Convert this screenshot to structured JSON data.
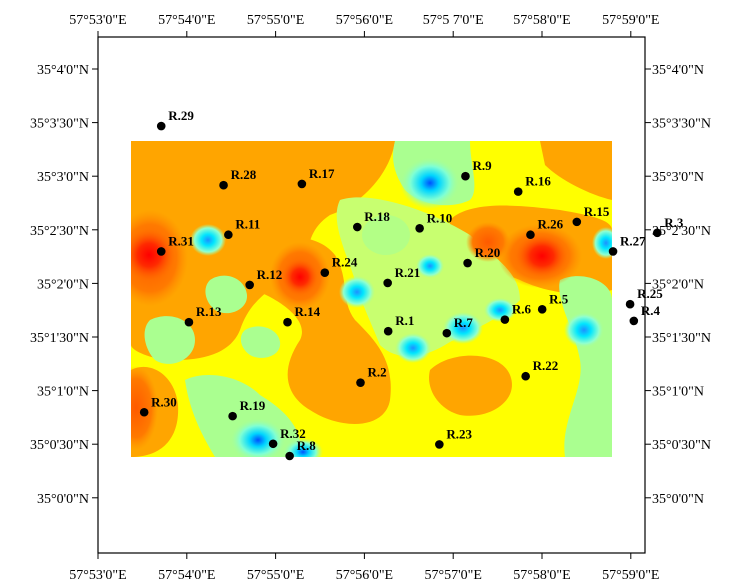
{
  "map": {
    "top_ticks": [
      "57°53'0\"E",
      "57°54'0\"E",
      "57°55'0\"E",
      "57°56'0\"E",
      "57°5 7'0\"E",
      "57°58'0\"E",
      "57°59'0\"E"
    ],
    "bottom_ticks": [
      "57°53'0\"E",
      "57°54'0\"E",
      "57°55'0\"E",
      "57°56'0\"E",
      "57°57'0\"E",
      "57°58'0\"E",
      "57°59'0\"E"
    ],
    "left_ticks": [
      "35°4'0\"N",
      "35°3'30\"N",
      "35°3'0\"N",
      "35°2'30\"N",
      "35°2'0\"N",
      "35°1'30\"N",
      "35°1'0\"N",
      "35°0'30\"N",
      "35°0'0\"N"
    ],
    "right_ticks": [
      "35°4'0\"N",
      "35°3'30\"N",
      "35°3'0\"N",
      "35°2'30\"N",
      "35°2'0\"N",
      "35°1'30\"N",
      "35°1'0\"N",
      "35°0'30\"N",
      "35°0'0\"N"
    ],
    "colors": {
      "high": "#ff0000",
      "mid_high": "#ff6a00",
      "mid": "#ffa500",
      "mid_low": "#ffff00",
      "low": "#aaff90",
      "lower": "#7fffd4",
      "lowest": "#00e5ff",
      "min": "#0070ff"
    },
    "points": [
      {
        "label": "R.1",
        "lon": 57.9378,
        "lat": 35.0259
      },
      {
        "label": "R.2",
        "lon": 57.9326,
        "lat": 35.0179
      },
      {
        "label": "R.3",
        "lon": 57.9883,
        "lat": 35.0412
      },
      {
        "label": "R.4",
        "lon": 57.9839,
        "lat": 35.0275
      },
      {
        "label": "R.5",
        "lon": 57.9667,
        "lat": 35.0293
      },
      {
        "label": "R.6",
        "lon": 57.9597,
        "lat": 35.0277
      },
      {
        "label": "R.7",
        "lon": 57.9488,
        "lat": 35.0256
      },
      {
        "label": "R.8",
        "lon": 57.9193,
        "lat": 35.0065
      },
      {
        "label": "R.9",
        "lon": 57.9523,
        "lat": 35.05
      },
      {
        "label": "R.10",
        "lon": 57.9437,
        "lat": 35.0419
      },
      {
        "label": "R.11",
        "lon": 57.9078,
        "lat": 35.0409
      },
      {
        "label": "R.12",
        "lon": 57.9118,
        "lat": 35.0331
      },
      {
        "label": "R.13",
        "lon": 57.9004,
        "lat": 35.0273
      },
      {
        "label": "R.14",
        "lon": 57.9189,
        "lat": 35.0273
      },
      {
        "label": "R.15",
        "lon": 57.9732,
        "lat": 35.0429
      },
      {
        "label": "R.16",
        "lon": 57.9622,
        "lat": 35.0476
      },
      {
        "label": "R.17",
        "lon": 57.9216,
        "lat": 35.0488
      },
      {
        "label": "R.18",
        "lon": 57.932,
        "lat": 35.0421
      },
      {
        "label": "R.19",
        "lon": 57.9086,
        "lat": 35.0127
      },
      {
        "label": "R.20",
        "lon": 57.9527,
        "lat": 35.0365
      },
      {
        "label": "R.21",
        "lon": 57.9377,
        "lat": 35.0334
      },
      {
        "label": "R.22",
        "lon": 57.9636,
        "lat": 35.0189
      },
      {
        "label": "R.23",
        "lon": 57.9474,
        "lat": 35.0083
      },
      {
        "label": "R.24",
        "lon": 57.9259,
        "lat": 35.035
      },
      {
        "label": "R.25",
        "lon": 57.9832,
        "lat": 35.0301
      },
      {
        "label": "R.26",
        "lon": 57.9645,
        "lat": 35.0409
      },
      {
        "label": "R.27",
        "lon": 57.98,
        "lat": 35.0383
      },
      {
        "label": "R.28",
        "lon": 57.9069,
        "lat": 35.0486
      },
      {
        "label": "R.29",
        "lon": 57.8952,
        "lat": 35.0578
      },
      {
        "label": "R.30",
        "lon": 57.892,
        "lat": 35.0133
      },
      {
        "label": "R.31",
        "lon": 57.8952,
        "lat": 35.0383
      },
      {
        "label": "R.32",
        "lon": 57.9162,
        "lat": 35.0084
      }
    ]
  }
}
